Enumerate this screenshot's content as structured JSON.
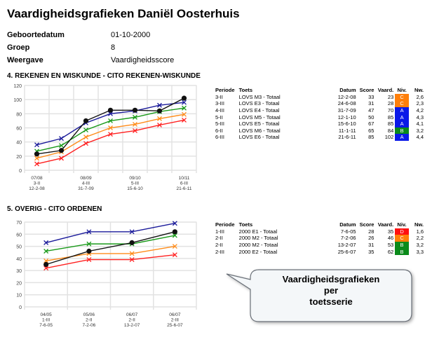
{
  "title": "Vaardigheidsgrafieken Daniël Oosterhuis",
  "info": [
    {
      "label": "Geboortedatum",
      "value": "01-10-2000"
    },
    {
      "label": "Groep",
      "value": "8"
    },
    {
      "label": "Weergave",
      "value": "Vaardigheidsscore"
    }
  ],
  "columns": [
    "Periode",
    "Toets",
    "Datum",
    "Score",
    "Vaard.",
    "Niv.",
    "Nw."
  ],
  "level_colors": {
    "A": "#0a18e8",
    "B": "#0a8a1a",
    "C": "#ff7f0a",
    "D": "#ff1010"
  },
  "series_colors": [
    "#1a1a9a",
    "#1a9a1a",
    "#ff8c1a",
    "#ff2020",
    "#111111"
  ],
  "sections": [
    {
      "heading": "4. REKENEN EN WISKUNDE - CITO REKENEN-WISKUNDE",
      "rows": [
        [
          "3-II",
          "LOVS M3 - Totaal",
          "12-2-08",
          "33",
          "23",
          "C",
          "2,6"
        ],
        [
          "3-III",
          "LOVS E3 - Totaal",
          "24-6-08",
          "31",
          "28",
          "C",
          "2,3"
        ],
        [
          "4-III",
          "LOVS E4 - Totaal",
          "31-7-09",
          "47",
          "70",
          "A",
          "4,2"
        ],
        [
          "5-II",
          "LOVS M5 - Totaal",
          "12-1-10",
          "50",
          "85",
          "A",
          "4,3"
        ],
        [
          "5-III",
          "LOVS E5 - Totaal",
          "15-6-10",
          "67",
          "85",
          "A",
          "4,1"
        ],
        [
          "6-II",
          "LOVS M6 - Totaal",
          "11-1-11",
          "65",
          "84",
          "B",
          "3,2"
        ],
        [
          "6-III",
          "LOVS E6 - Totaal",
          "21-6-11",
          "85",
          "102",
          "A",
          "4,4"
        ]
      ]
    },
    {
      "heading": "5. OVERIG - CITO ORDENEN",
      "rows": [
        [
          "1-III",
          "2000 E1 - Totaal",
          "7-6-05",
          "28",
          "35",
          "D",
          "1,6"
        ],
        [
          "2-II",
          "2000 M2 - Totaal",
          "7-2-06",
          "26",
          "46",
          "C",
          "2,2"
        ],
        [
          "2-II",
          "2000 M2 - Totaal",
          "13-2-07",
          "31",
          "53",
          "B",
          "3,2"
        ],
        [
          "2-III",
          "2000 E2 - Totaal",
          "25-6-07",
          "35",
          "62",
          "B",
          "3,3"
        ]
      ]
    }
  ],
  "chart_data": [
    {
      "type": "line",
      "ylim": [
        0,
        120
      ],
      "yticks": [
        0,
        20,
        40,
        60,
        80,
        100,
        120
      ],
      "grid": true,
      "x_labels": [
        [
          "07/08",
          "3-II",
          "12-2-08"
        ],
        null,
        [
          "08/09",
          "4-III",
          "31-7-09"
        ],
        null,
        [
          "09/10",
          "5-III",
          "15-6-10"
        ],
        null,
        [
          "10/11",
          "6-III",
          "21-6-11"
        ]
      ],
      "series": [
        {
          "values": [
            36,
            45,
            67,
            80,
            84,
            92,
            96
          ],
          "marker": "x"
        },
        {
          "values": [
            27,
            35,
            57,
            70,
            75,
            83,
            88
          ],
          "marker": "x"
        },
        {
          "values": [
            17,
            26,
            47,
            60,
            65,
            73,
            79
          ],
          "marker": "x"
        },
        {
          "values": [
            9,
            17,
            38,
            51,
            56,
            64,
            71
          ],
          "marker": "x"
        },
        {
          "values": [
            23,
            28,
            70,
            85,
            85,
            84,
            102
          ],
          "marker": "dot"
        }
      ]
    },
    {
      "type": "line",
      "ylim": [
        0,
        70
      ],
      "yticks": [
        0,
        10,
        20,
        30,
        40,
        50,
        60,
        70
      ],
      "grid": true,
      "x_labels": [
        [
          "04/05",
          "1-III",
          "7-6-05"
        ],
        [
          "05/06",
          "2-II",
          "7-2-06"
        ],
        [
          "06/07",
          "2-II",
          "13-2-07"
        ],
        [
          "06/07",
          "2-III",
          "25-6-07"
        ]
      ],
      "series": [
        {
          "values": [
            53,
            62,
            62,
            69
          ],
          "marker": "x"
        },
        {
          "values": [
            46,
            52,
            52,
            59
          ],
          "marker": "x"
        },
        {
          "values": [
            38,
            44,
            44,
            50
          ],
          "marker": "x"
        },
        {
          "values": [
            32,
            39,
            39,
            43
          ],
          "marker": "x"
        },
        {
          "values": [
            35,
            46,
            53,
            62
          ],
          "marker": "dot"
        }
      ]
    }
  ],
  "callout": {
    "lines": [
      "Vaardigheidsgrafieken",
      "per",
      "toetsserie"
    ]
  }
}
